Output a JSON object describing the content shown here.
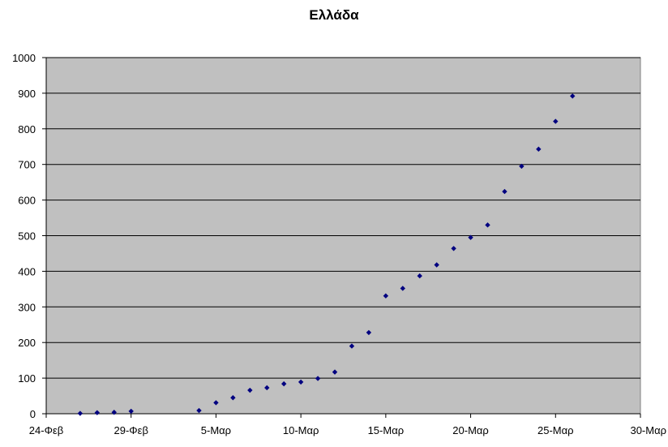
{
  "chart_data": {
    "type": "scatter",
    "title": "Ελλάδα",
    "xlabel": "",
    "ylabel": "",
    "x_range": [
      "2020-02-24",
      "2020-03-30"
    ],
    "ylim": [
      0,
      1000
    ],
    "y_ticks": [
      "0",
      "100",
      "200",
      "300",
      "400",
      "500",
      "600",
      "700",
      "800",
      "900",
      "1000"
    ],
    "x_ticks": [
      {
        "date": "2020-02-24",
        "label": "24-Φεβ"
      },
      {
        "date": "2020-02-29",
        "label": "29-Φεβ"
      },
      {
        "date": "2020-03-05",
        "label": "5-Μαρ"
      },
      {
        "date": "2020-03-10",
        "label": "10-Μαρ"
      },
      {
        "date": "2020-03-15",
        "label": "15-Μαρ"
      },
      {
        "date": "2020-03-20",
        "label": "20-Μαρ"
      },
      {
        "date": "2020-03-25",
        "label": "25-Μαρ"
      },
      {
        "date": "2020-03-30",
        "label": "30-Μαρ"
      }
    ],
    "grid": "horizontal",
    "legend": "none",
    "plot_background": "#c0c0c0",
    "marker_color": "#000080",
    "points": [
      {
        "x": "2020-02-26",
        "y": 1
      },
      {
        "x": "2020-02-27",
        "y": 3
      },
      {
        "x": "2020-02-28",
        "y": 4
      },
      {
        "x": "2020-02-29",
        "y": 7
      },
      {
        "x": "2020-03-04",
        "y": 9
      },
      {
        "x": "2020-03-05",
        "y": 31
      },
      {
        "x": "2020-03-06",
        "y": 45
      },
      {
        "x": "2020-03-07",
        "y": 66
      },
      {
        "x": "2020-03-08",
        "y": 73
      },
      {
        "x": "2020-03-09",
        "y": 84
      },
      {
        "x": "2020-03-10",
        "y": 89
      },
      {
        "x": "2020-03-11",
        "y": 99
      },
      {
        "x": "2020-03-12",
        "y": 117
      },
      {
        "x": "2020-03-13",
        "y": 190
      },
      {
        "x": "2020-03-14",
        "y": 228
      },
      {
        "x": "2020-03-15",
        "y": 331
      },
      {
        "x": "2020-03-16",
        "y": 352
      },
      {
        "x": "2020-03-17",
        "y": 387
      },
      {
        "x": "2020-03-18",
        "y": 418
      },
      {
        "x": "2020-03-19",
        "y": 464
      },
      {
        "x": "2020-03-20",
        "y": 495
      },
      {
        "x": "2020-03-21",
        "y": 530
      },
      {
        "x": "2020-03-22",
        "y": 624
      },
      {
        "x": "2020-03-23",
        "y": 695
      },
      {
        "x": "2020-03-24",
        "y": 743
      },
      {
        "x": "2020-03-25",
        "y": 821
      },
      {
        "x": "2020-03-26",
        "y": 892
      }
    ]
  }
}
